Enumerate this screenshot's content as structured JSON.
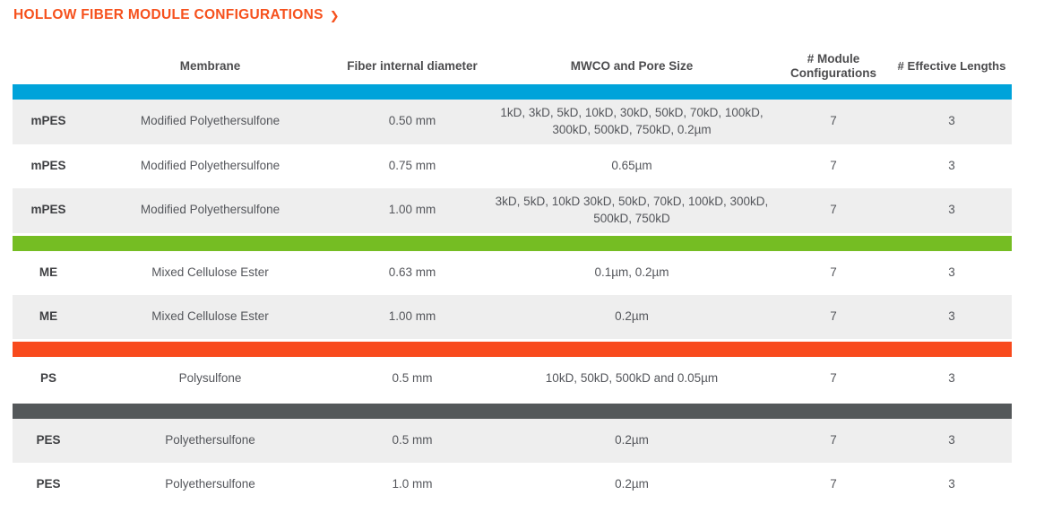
{
  "title": {
    "text": "HOLLOW FIBER MODULE CONFIGURATIONS",
    "chevron_icon": "❯",
    "color": "#f6511d"
  },
  "table": {
    "headers": [
      "Membrane",
      "Fiber internal diameter",
      "MWCO and Pore Size",
      "# Module Configurations",
      "# Effective Lengths"
    ],
    "row_shade_color": "#eeeeee",
    "groups": [
      {
        "separator_color": "#00a3da",
        "rows": [
          {
            "code": "mPES",
            "membrane": "Modified Polyethersulfone",
            "diameter": "0.50 mm",
            "mwco": "1kD, 3kD, 5kD, 10kD, 30kD, 50kD, 70kD, 100kD, 300kD, 500kD, 750kD, 0.2µm",
            "module_configurations": "7",
            "effective_lengths": "3"
          },
          {
            "code": "mPES",
            "membrane": "Modified Polyethersulfone",
            "diameter": "0.75 mm",
            "mwco": "0.65µm",
            "module_configurations": "7",
            "effective_lengths": "3"
          },
          {
            "code": "mPES",
            "membrane": "Modified Polyethersulfone",
            "diameter": "1.00 mm",
            "mwco": "3kD, 5kD, 10kD 30kD, 50kD, 70kD, 100kD, 300kD, 500kD, 750kD",
            "module_configurations": "7",
            "effective_lengths": "3"
          }
        ]
      },
      {
        "separator_color": "#75bd23",
        "rows": [
          {
            "code": "ME",
            "membrane": "Mixed Cellulose Ester",
            "diameter": "0.63 mm",
            "mwco": "0.1µm, 0.2µm",
            "module_configurations": "7",
            "effective_lengths": "3"
          },
          {
            "code": "ME",
            "membrane": "Mixed Cellulose Ester",
            "diameter": "1.00 mm",
            "mwco": "0.2µm",
            "module_configurations": "7",
            "effective_lengths": "3"
          }
        ]
      },
      {
        "separator_color": "#f84a1d",
        "rows": [
          {
            "code": "PS",
            "membrane": "Polysulfone",
            "diameter": "0.5 mm",
            "mwco": "10kD, 50kD, 500kD and 0.05µm",
            "module_configurations": "7",
            "effective_lengths": "3"
          }
        ]
      },
      {
        "separator_color": "#54585a",
        "rows": [
          {
            "code": "PES",
            "membrane": "Polyethersulfone",
            "diameter": "0.5 mm",
            "mwco": "0.2µm",
            "module_configurations": "7",
            "effective_lengths": "3"
          },
          {
            "code": "PES",
            "membrane": "Polyethersulfone",
            "diameter": "1.0 mm",
            "mwco": "0.2µm",
            "module_configurations": "7",
            "effective_lengths": "3"
          }
        ]
      }
    ]
  }
}
